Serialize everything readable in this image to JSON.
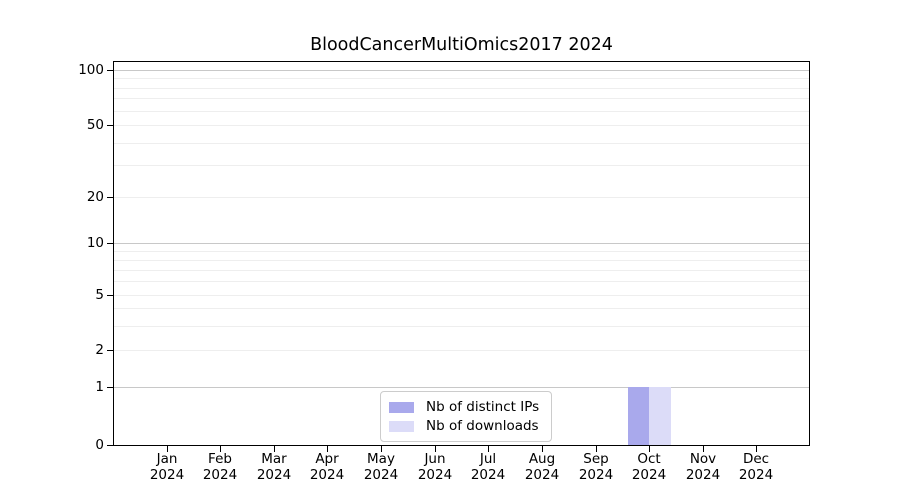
{
  "chart_data": {
    "type": "bar",
    "title": "BloodCancerMultiOmics2017 2024",
    "categories": [
      "Jan 2024",
      "Feb 2024",
      "Mar 2024",
      "Apr 2024",
      "May 2024",
      "Jun 2024",
      "Jul 2024",
      "Aug 2024",
      "Sep 2024",
      "Oct 2024",
      "Nov 2024",
      "Dec 2024"
    ],
    "series": [
      {
        "name": "Nb of distinct IPs",
        "color": "#a9a9ec",
        "values": [
          0,
          0,
          0,
          0,
          0,
          0,
          0,
          0,
          0,
          1,
          0,
          0
        ]
      },
      {
        "name": "Nb of downloads",
        "color": "#dcdcf8",
        "values": [
          0,
          0,
          0,
          0,
          0,
          0,
          0,
          0,
          0,
          1,
          0,
          0
        ]
      }
    ],
    "xlabel": "",
    "ylabel": "",
    "yscale": "log (with 0 baseline)",
    "ylim": [
      0,
      112
    ],
    "y_ticks_labeled": [
      0,
      1,
      2,
      5,
      10,
      20,
      50,
      100
    ],
    "y_minor_gridlines": [
      3,
      4,
      6,
      7,
      8,
      9,
      30,
      40,
      60,
      70,
      80,
      90
    ],
    "grid": true,
    "legend_position": "lower center"
  },
  "legend": {
    "entries": [
      "Nb of distinct IPs",
      "Nb of downloads"
    ]
  },
  "colors": {
    "distinct_ips_bar": "#a9a9ec",
    "downloads_bar": "#dcdcf8",
    "grid_major": "#c8c8c8",
    "grid_minor": "#eeeeee",
    "spine": "#000000",
    "legend_border": "#cccccc",
    "background": "#ffffff",
    "text": "#000000"
  }
}
